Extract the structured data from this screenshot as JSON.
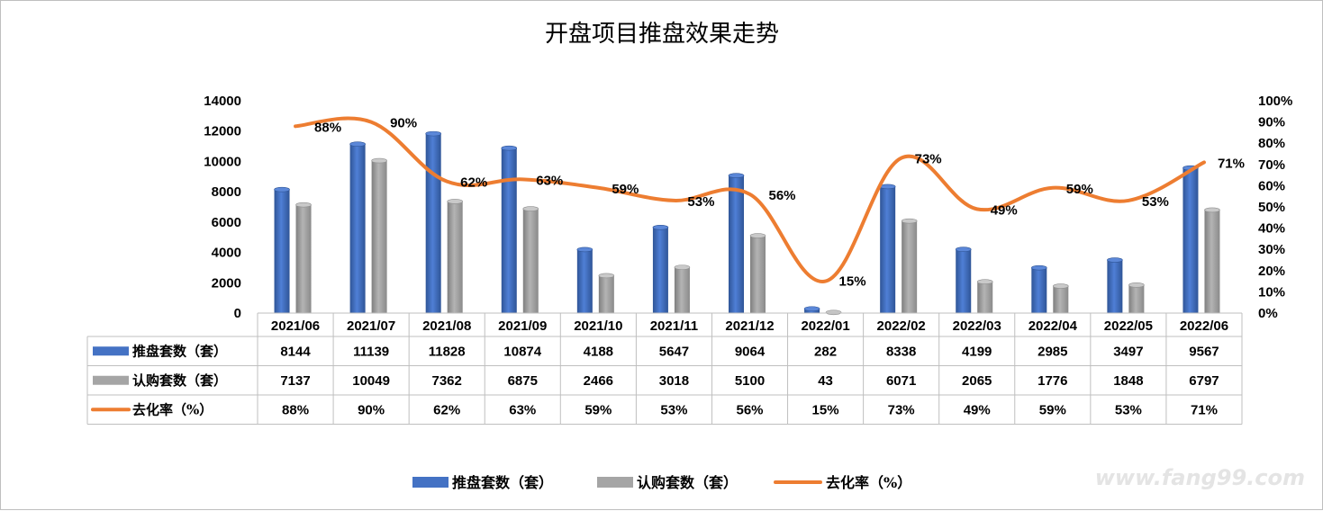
{
  "chart_data": {
    "type": "bar",
    "title": "开盘项目推盘效果走势",
    "categories": [
      "2021/06",
      "2021/07",
      "2021/08",
      "2021/09",
      "2021/10",
      "2021/11",
      "2021/12",
      "2022/01",
      "2022/02",
      "2022/03",
      "2022/04",
      "2022/05",
      "2022/06"
    ],
    "series": [
      {
        "name": "推盘套数（套）",
        "kind": "bar",
        "axis": "left",
        "color": "#4472c4",
        "values": [
          8144,
          11139,
          11828,
          10874,
          4188,
          5647,
          9064,
          282,
          8338,
          4199,
          2985,
          3497,
          9567
        ]
      },
      {
        "name": "认购套数（套）",
        "kind": "bar",
        "axis": "left",
        "color": "#a5a5a5",
        "values": [
          7137,
          10049,
          7362,
          6875,
          2466,
          3018,
          5100,
          43,
          6071,
          2065,
          1776,
          1848,
          6797
        ]
      },
      {
        "name": "去化率（%）",
        "kind": "line",
        "axis": "right",
        "color": "#ed7d31",
        "values": [
          88,
          90,
          62,
          63,
          59,
          53,
          56,
          15,
          73,
          49,
          59,
          53,
          71
        ]
      }
    ],
    "y_left": {
      "min": 0,
      "max": 14000,
      "step": 2000,
      "ticks": [
        "0",
        "2000",
        "4000",
        "6000",
        "8000",
        "10000",
        "12000",
        "14000"
      ]
    },
    "y_right": {
      "min": 0,
      "max": 100,
      "step": 10,
      "ticks": [
        "0%",
        "10%",
        "20%",
        "30%",
        "40%",
        "50%",
        "60%",
        "70%",
        "80%",
        "90%",
        "100%"
      ]
    },
    "data_table": {
      "rows": [
        {
          "label": "推盘套数（套）",
          "cells": [
            "8144",
            "11139",
            "11828",
            "10874",
            "4188",
            "5647",
            "9064",
            "282",
            "8338",
            "4199",
            "2985",
            "3497",
            "9567"
          ]
        },
        {
          "label": "认购套数（套）",
          "cells": [
            "7137",
            "10049",
            "7362",
            "6875",
            "2466",
            "3018",
            "5100",
            "43",
            "6071",
            "2065",
            "1776",
            "1848",
            "6797"
          ]
        },
        {
          "label": "去化率（%）",
          "cells": [
            "88%",
            "90%",
            "62%",
            "63%",
            "59%",
            "53%",
            "56%",
            "15%",
            "73%",
            "49%",
            "59%",
            "53%",
            "71%"
          ]
        }
      ]
    },
    "line_labels": [
      "88%",
      "90%",
      "62%",
      "63%",
      "59%",
      "53%",
      "56%",
      "15%",
      "73%",
      "49%",
      "59%",
      "53%",
      "71%"
    ],
    "legend": [
      "推盘套数（套）",
      "认购套数（套）",
      "去化率（%）"
    ],
    "legend_position": "bottom",
    "grid": false
  },
  "watermark": "www.fang99.com"
}
